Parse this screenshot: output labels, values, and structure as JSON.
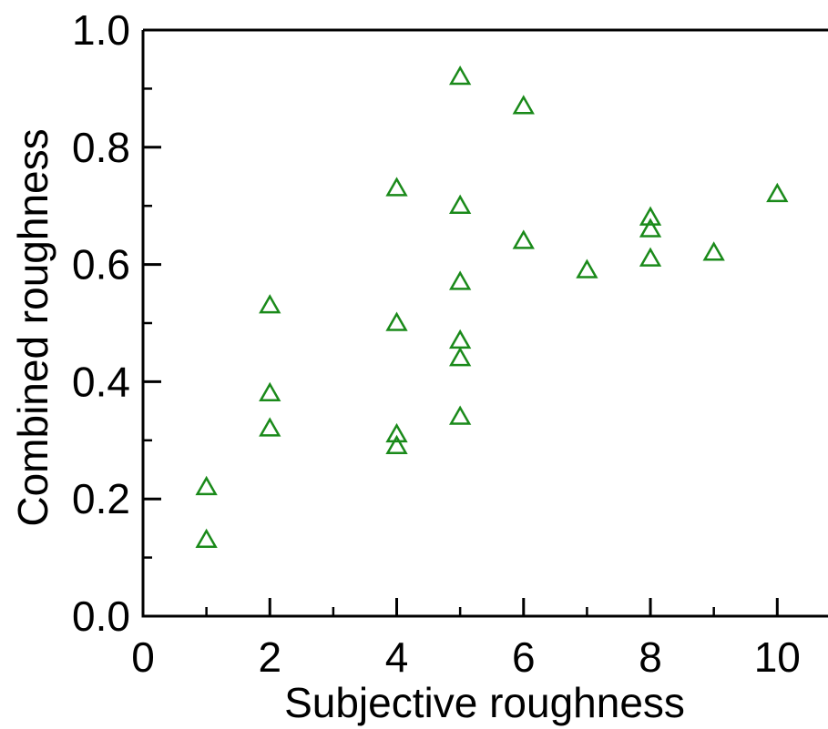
{
  "chart_data": {
    "type": "scatter",
    "title": "",
    "xlabel": "Subjective roughness",
    "ylabel": "Combined roughness",
    "xlim": [
      0,
      10.8
    ],
    "ylim": [
      0,
      1.0
    ],
    "xticks": [
      0,
      2,
      4,
      6,
      8,
      10
    ],
    "xtick_labels": [
      "0",
      "2",
      "4",
      "6",
      "8",
      "10"
    ],
    "yticks": [
      0.0,
      0.2,
      0.4,
      0.6,
      0.8,
      1.0
    ],
    "ytick_labels": [
      "0.0",
      "0.2",
      "0.4",
      "0.6",
      "0.8",
      "1.0"
    ],
    "grid": false,
    "legend": "none",
    "marker": "open-triangle",
    "marker_color": "#1a8a1a",
    "series": [
      {
        "points": [
          {
            "x": 1,
            "y": 0.13
          },
          {
            "x": 1,
            "y": 0.22
          },
          {
            "x": 2,
            "y": 0.32
          },
          {
            "x": 2,
            "y": 0.38
          },
          {
            "x": 2,
            "y": 0.53
          },
          {
            "x": 4,
            "y": 0.29
          },
          {
            "x": 4,
            "y": 0.31
          },
          {
            "x": 4,
            "y": 0.5
          },
          {
            "x": 4,
            "y": 0.73
          },
          {
            "x": 5,
            "y": 0.34
          },
          {
            "x": 5,
            "y": 0.44
          },
          {
            "x": 5,
            "y": 0.47
          },
          {
            "x": 5,
            "y": 0.57
          },
          {
            "x": 5,
            "y": 0.7
          },
          {
            "x": 5,
            "y": 0.92
          },
          {
            "x": 6,
            "y": 0.64
          },
          {
            "x": 6,
            "y": 0.87
          },
          {
            "x": 7,
            "y": 0.59
          },
          {
            "x": 8,
            "y": 0.61
          },
          {
            "x": 8,
            "y": 0.66
          },
          {
            "x": 8,
            "y": 0.68
          },
          {
            "x": 9,
            "y": 0.62
          },
          {
            "x": 10,
            "y": 0.72
          }
        ]
      }
    ]
  }
}
